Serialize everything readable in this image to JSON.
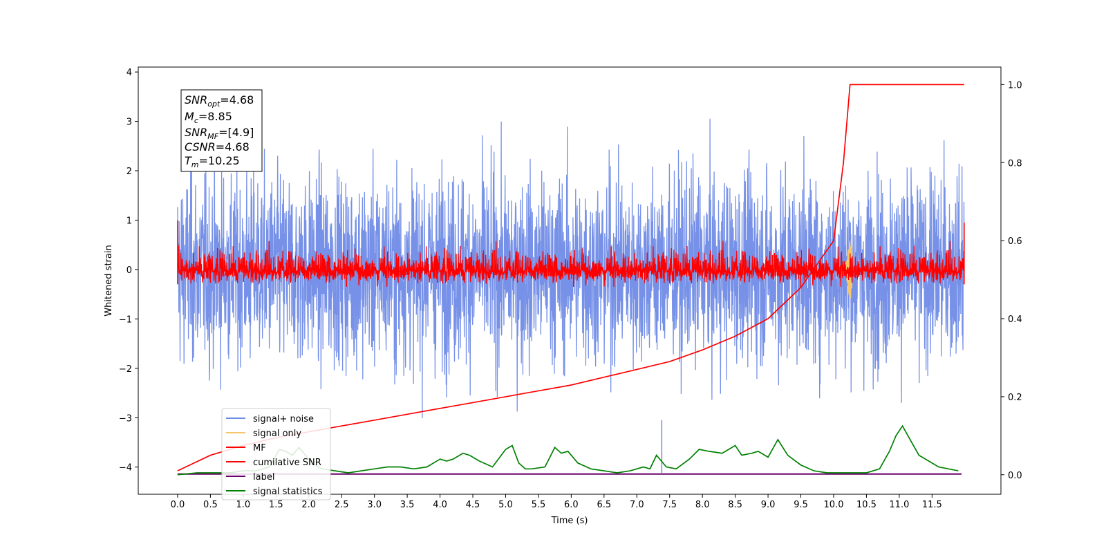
{
  "chart_data": {
    "type": "line",
    "xlabel": "Time (s)",
    "ylabel": "Whitened strain",
    "xlim": [
      -0.6,
      12.55
    ],
    "ylim": [
      -4.55,
      4.1
    ],
    "y2lim": [
      -0.05,
      1.045
    ],
    "x_ticks": [
      0.0,
      0.5,
      1.0,
      1.5,
      2.0,
      2.5,
      3.0,
      3.5,
      4.0,
      4.5,
      5.0,
      5.5,
      6.0,
      6.5,
      7.0,
      7.5,
      8.0,
      8.5,
      9.0,
      9.5,
      10.0,
      10.5,
      11.0,
      11.5
    ],
    "x_tick_labels": [
      "0.0",
      "0.5",
      "1.0",
      "1.5",
      "2.0",
      "2.5",
      "3.0",
      "3.5",
      "4.0",
      "4.5",
      "5.0",
      "5.5",
      "6.0",
      "6.5",
      "7.0",
      "7.5",
      "8.0",
      "8.5",
      "9.0",
      "9.5",
      "10.0",
      "10.5",
      "11.0",
      "11.5"
    ],
    "y_ticks": [
      4,
      3,
      2,
      1,
      0,
      -1,
      -2,
      -3,
      -4
    ],
    "y_tick_labels": [
      "4",
      "3",
      "2",
      "1",
      "0",
      "−1",
      "−2",
      "−3",
      "−4"
    ],
    "y2_ticks": [
      1.0,
      0.8,
      0.6,
      0.4,
      0.2,
      0.0
    ],
    "y2_tick_labels": [
      "1.0",
      "0.8",
      "0.6",
      "0.4",
      "0.2",
      "0.0"
    ],
    "grid": false,
    "legend_placement": "lower-left",
    "series": [
      {
        "name": "signal+ noise",
        "color": "#6f8be6",
        "axis": "left",
        "kind": "noise-band",
        "x_range": [
          0.0,
          11.99
        ],
        "envelope": [
          -2.6,
          3.7
        ]
      },
      {
        "name": "signal only",
        "color": "#f6c76a",
        "axis": "left",
        "kind": "chirp",
        "peak_time": 10.25,
        "peak_amplitude": 0.6
      },
      {
        "name": "MF",
        "color": "#ff0000",
        "axis": "left",
        "kind": "noise-band",
        "x_range": [
          0.0,
          11.99
        ],
        "envelope": [
          -0.35,
          0.7
        ]
      },
      {
        "name": "cumilative SNR",
        "color": "#ff0000",
        "axis": "right",
        "x": [
          0.0,
          0.5,
          1.0,
          1.5,
          2.0,
          2.5,
          3.0,
          3.5,
          4.0,
          4.5,
          5.0,
          5.5,
          6.0,
          6.5,
          7.0,
          7.5,
          8.0,
          8.5,
          9.0,
          9.5,
          10.0,
          10.15,
          10.25,
          11.99
        ],
        "y": [
          0.01,
          0.05,
          0.075,
          0.095,
          0.11,
          0.125,
          0.14,
          0.155,
          0.17,
          0.185,
          0.2,
          0.215,
          0.23,
          0.25,
          0.27,
          0.29,
          0.32,
          0.355,
          0.4,
          0.48,
          0.6,
          0.8,
          1.0,
          1.0
        ]
      },
      {
        "name": "label",
        "color": "#6a006a",
        "axis": "left",
        "x": [
          0.0,
          11.95
        ],
        "y": [
          -4.14,
          -4.14
        ]
      },
      {
        "name": "signal statistics",
        "color": "#008000",
        "axis": "right",
        "x": [
          0.0,
          0.3,
          0.5,
          0.8,
          1.0,
          1.2,
          1.4,
          1.55,
          1.65,
          1.75,
          1.85,
          1.95,
          2.05,
          2.2,
          2.4,
          2.6,
          2.8,
          3.0,
          3.2,
          3.4,
          3.6,
          3.8,
          4.0,
          4.1,
          4.2,
          4.35,
          4.45,
          4.6,
          4.8,
          5.0,
          5.1,
          5.2,
          5.3,
          5.4,
          5.6,
          5.75,
          5.85,
          5.95,
          6.1,
          6.3,
          6.5,
          6.7,
          6.9,
          7.1,
          7.2,
          7.3,
          7.45,
          7.6,
          7.8,
          7.95,
          8.1,
          8.3,
          8.5,
          8.6,
          8.75,
          8.85,
          9.0,
          9.15,
          9.3,
          9.5,
          9.7,
          9.9,
          10.1,
          10.3,
          10.5,
          10.7,
          10.85,
          10.95,
          11.05,
          11.15,
          11.3,
          11.45,
          11.6,
          11.75,
          11.9
        ],
        "y": [
          0.0,
          0.005,
          0.005,
          0.005,
          0.01,
          0.01,
          0.02,
          0.065,
          0.06,
          0.05,
          0.07,
          0.05,
          0.03,
          0.015,
          0.01,
          0.005,
          0.01,
          0.015,
          0.02,
          0.02,
          0.015,
          0.02,
          0.04,
          0.035,
          0.04,
          0.055,
          0.05,
          0.035,
          0.02,
          0.065,
          0.075,
          0.03,
          0.015,
          0.015,
          0.02,
          0.07,
          0.055,
          0.06,
          0.03,
          0.015,
          0.01,
          0.005,
          0.01,
          0.02,
          0.015,
          0.05,
          0.02,
          0.015,
          0.04,
          0.065,
          0.06,
          0.055,
          0.075,
          0.05,
          0.055,
          0.06,
          0.045,
          0.09,
          0.05,
          0.025,
          0.01,
          0.005,
          0.005,
          0.005,
          0.005,
          0.015,
          0.06,
          0.1,
          0.125,
          0.095,
          0.05,
          0.035,
          0.02,
          0.015,
          0.01
        ]
      }
    ],
    "annotations": {
      "snr_opt": "=4.68",
      "mc": "=8.85",
      "snr_mf": "=[4.9]",
      "csnr": "=4.68",
      "tm": "=10.25"
    }
  }
}
